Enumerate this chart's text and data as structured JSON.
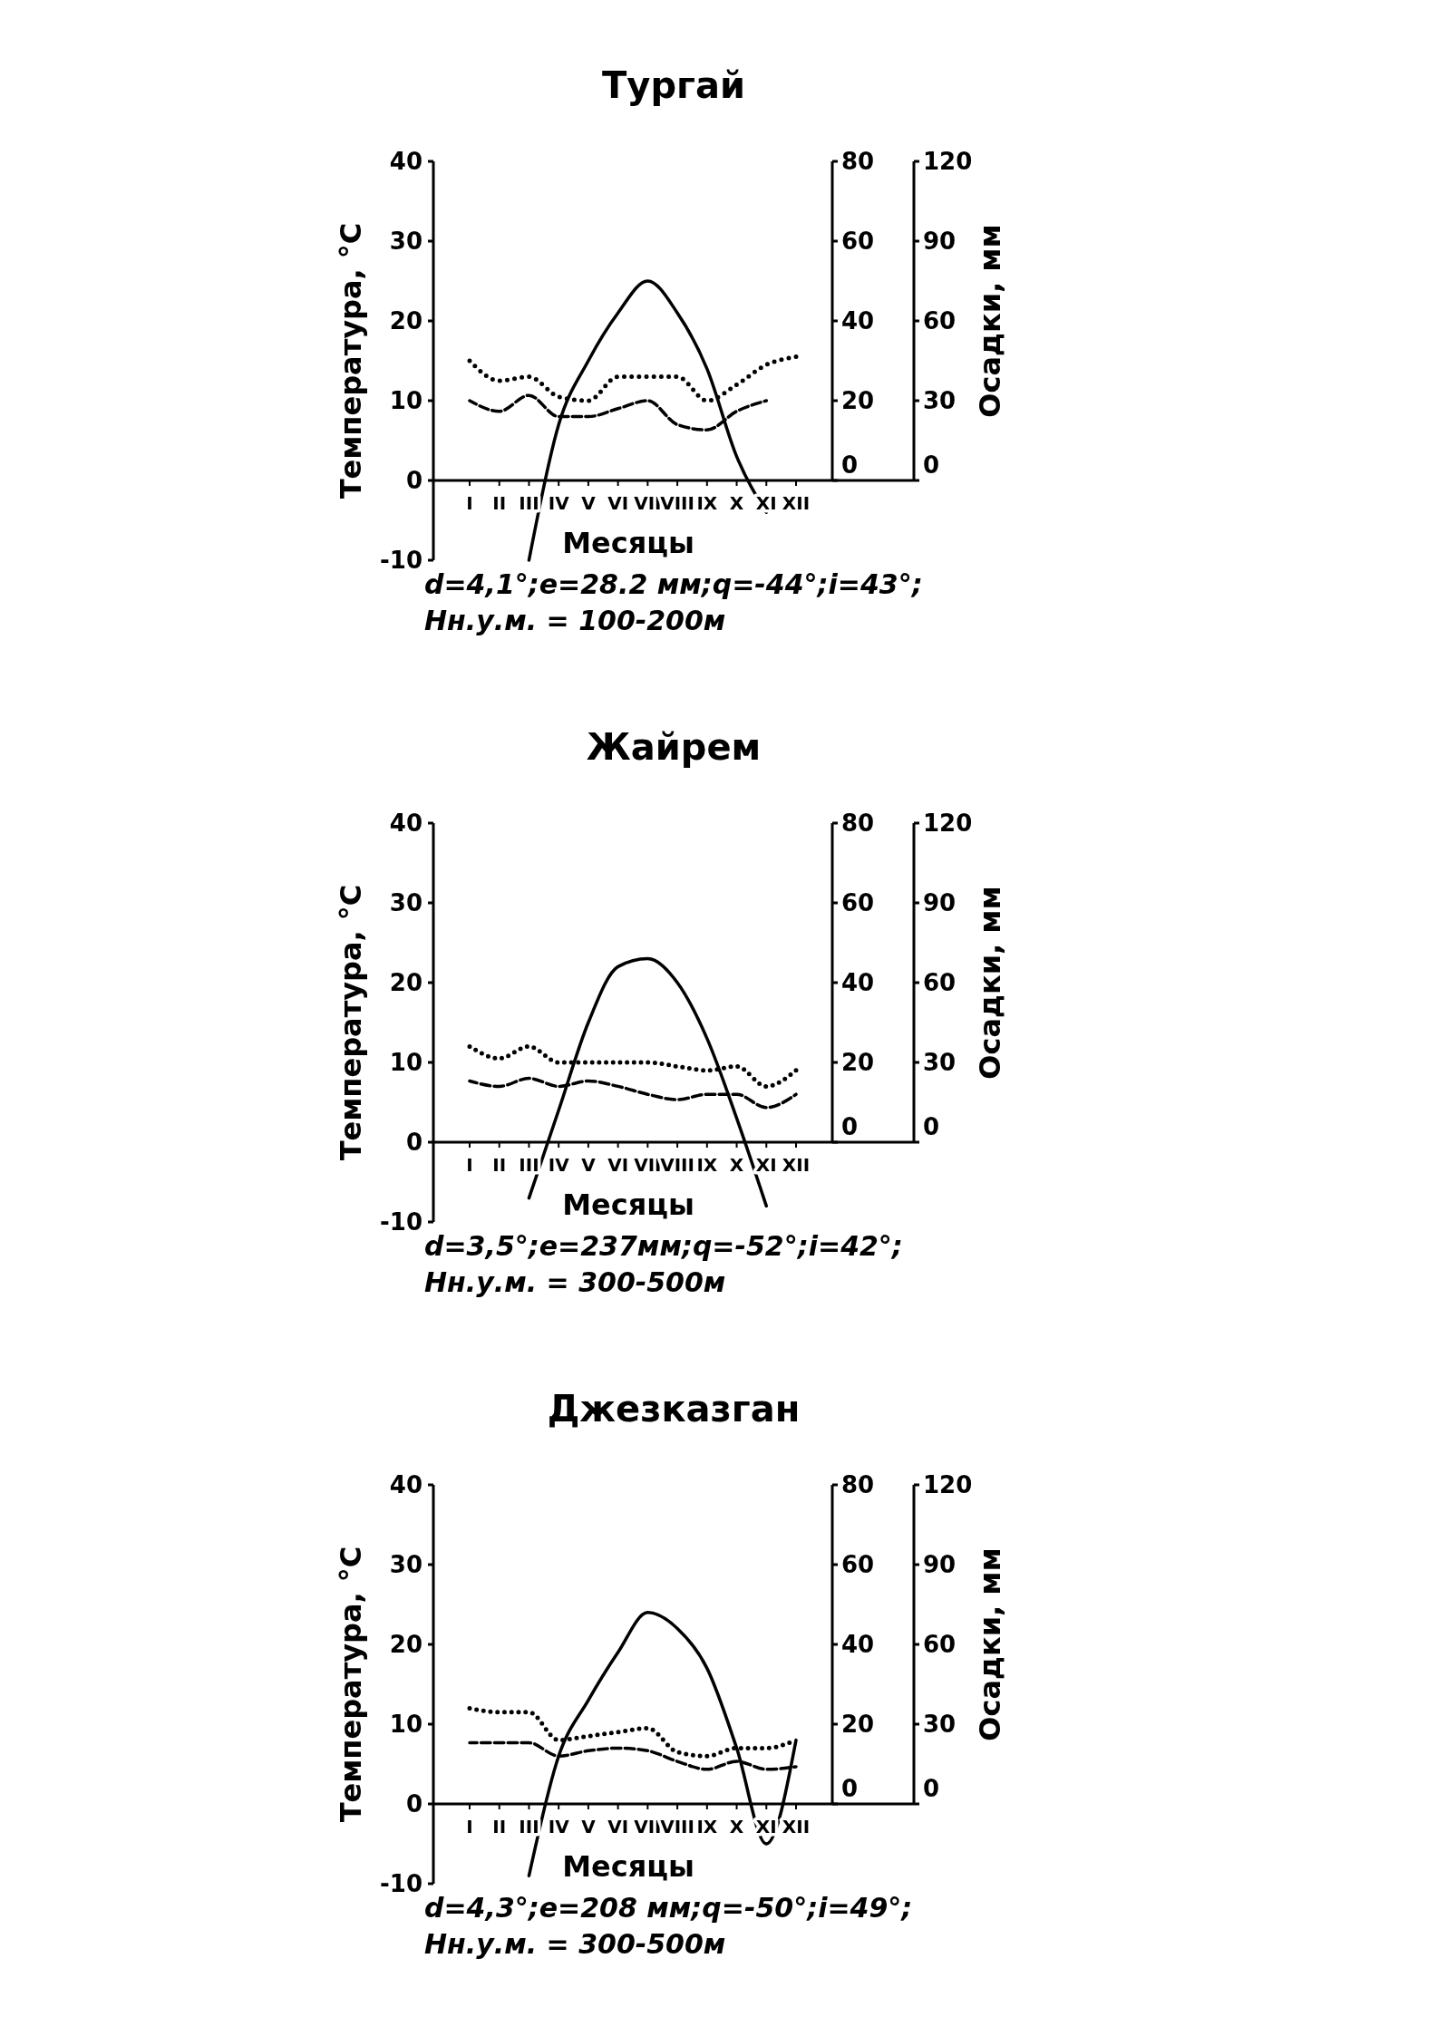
{
  "chart_data": [
    {
      "type": "line",
      "title": "Тургай",
      "xlabel": "Месяцы",
      "ylabel": "Температура, °C",
      "y2label": "Осадки, мм",
      "categories": [
        "I",
        "II",
        "III",
        "IV",
        "V",
        "VI",
        "VII",
        "VIII",
        "IX",
        "X",
        "XI",
        "XII"
      ],
      "ylim": [
        -10,
        40
      ],
      "yticks": [
        -10,
        0,
        10,
        20,
        30,
        40
      ],
      "y2lim": [
        0,
        80
      ],
      "y2ticks": [
        0,
        20,
        40,
        60,
        80
      ],
      "y3lim": [
        0,
        120
      ],
      "y3ticks": [
        0,
        30,
        60,
        90,
        120
      ],
      "grid": false,
      "marker": "none",
      "series": [
        {
          "color": "#000000",
          "line_style": "solid",
          "values": [
            null,
            null,
            -10,
            7,
            15,
            21,
            25,
            21,
            14,
            3,
            -4,
            null
          ]
        },
        {
          "color": "#000000",
          "line_style": "dotted",
          "axis": "y2",
          "values": [
            30,
            25,
            26,
            21,
            20,
            26,
            26,
            26,
            20,
            24,
            29,
            31
          ]
        },
        {
          "color": "#000000",
          "line_style": "dashed",
          "axis": "y3",
          "values": [
            30,
            26,
            32,
            24,
            24,
            27,
            30,
            21,
            19,
            26,
            30,
            null
          ]
        }
      ],
      "annotations": [
        "d=4,1°;e=28.2 мм;q=-44°;i=43°;",
        "Hн.у.м. = 100-200м"
      ]
    },
    {
      "type": "line",
      "title": "Жайрем",
      "xlabel": "Месяцы",
      "ylabel": "Температура, °C",
      "y2label": "Осадки, мм",
      "categories": [
        "I",
        "II",
        "III",
        "IV",
        "V",
        "VI",
        "VII",
        "VIII",
        "IX",
        "X",
        "XI",
        "XII"
      ],
      "ylim": [
        -10,
        40
      ],
      "yticks": [
        -10,
        0,
        10,
        20,
        30,
        40
      ],
      "y2lim": [
        0,
        80
      ],
      "y2ticks": [
        0,
        20,
        40,
        60,
        80
      ],
      "y3lim": [
        0,
        120
      ],
      "y3ticks": [
        0,
        30,
        60,
        90,
        120
      ],
      "grid": false,
      "marker": "none",
      "series": [
        {
          "color": "#000000",
          "line_style": "solid",
          "values": [
            null,
            null,
            -7,
            4,
            15,
            22,
            23,
            20,
            13,
            3,
            -8,
            null
          ]
        },
        {
          "color": "#000000",
          "line_style": "dotted",
          "axis": "y2",
          "values": [
            24,
            21,
            24,
            20,
            20,
            20,
            20,
            19,
            18,
            19,
            14,
            18
          ]
        },
        {
          "color": "#000000",
          "line_style": "dashed",
          "axis": "y3",
          "values": [
            23,
            21,
            24,
            21,
            23,
            21,
            18,
            16,
            18,
            18,
            13,
            18
          ]
        }
      ],
      "annotations": [
        "d=3,5°;e=237мм;q=-52°;i=42°;",
        "Hн.у.м. = 300-500м"
      ]
    },
    {
      "type": "line",
      "title": "Джезказган",
      "xlabel": "Месяцы",
      "ylabel": "Температура, °C",
      "y2label": "Осадки, мм",
      "categories": [
        "I",
        "II",
        "III",
        "IV",
        "V",
        "VI",
        "VII",
        "VIII",
        "IX",
        "X",
        "XI",
        "XII"
      ],
      "ylim": [
        -10,
        40
      ],
      "yticks": [
        -10,
        0,
        10,
        20,
        30,
        40
      ],
      "y2lim": [
        0,
        80
      ],
      "y2ticks": [
        0,
        20,
        40,
        60,
        80
      ],
      "y3lim": [
        0,
        120
      ],
      "y3ticks": [
        0,
        30,
        60,
        90,
        120
      ],
      "grid": false,
      "marker": "none",
      "series": [
        {
          "color": "#000000",
          "line_style": "solid",
          "values": [
            null,
            null,
            -9,
            6,
            13,
            19,
            24,
            22,
            17,
            7,
            -5,
            8
          ]
        },
        {
          "color": "#000000",
          "line_style": "dotted",
          "axis": "y2",
          "values": [
            24,
            23,
            23,
            16,
            17,
            18,
            19,
            13,
            12,
            14,
            14,
            16
          ]
        },
        {
          "color": "#000000",
          "line_style": "dashed",
          "axis": "y3",
          "values": [
            23,
            23,
            23,
            18,
            20,
            21,
            20,
            16,
            13,
            16,
            13,
            14
          ]
        }
      ],
      "annotations": [
        "d=4,3°;e=208 мм;q=-50°;i=49°;",
        "Hн.у.м. = 300-500м"
      ]
    }
  ]
}
